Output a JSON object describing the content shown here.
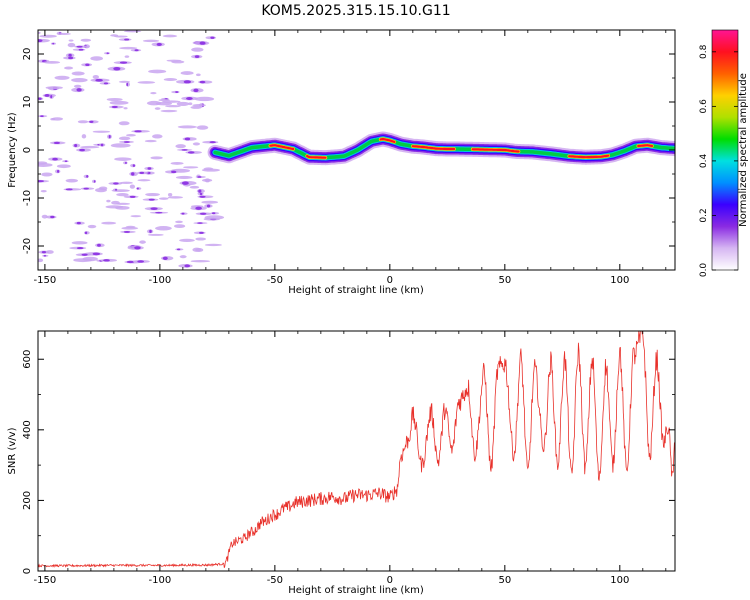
{
  "title": "KOM5.2025.315.15.10.G11",
  "chart_data": [
    {
      "type": "heatmap",
      "xlabel": "Height of straight line (km)",
      "ylabel": "Frequency (Hz)",
      "xlim": [
        -153,
        124
      ],
      "ylim": [
        -25,
        25
      ],
      "xticks": [
        -150,
        -100,
        -50,
        0,
        50,
        100
      ],
      "yticks": [
        -20,
        -10,
        0,
        10,
        20
      ],
      "noise_region_x": [
        -153,
        -76
      ],
      "signal_region_x": [
        -76,
        124
      ],
      "ridge": {
        "x": [
          -76,
          -70,
          -60,
          -50,
          -42,
          -35,
          -28,
          -20,
          -14,
          -8,
          -3,
          0,
          5,
          10,
          15,
          20,
          25,
          30,
          40,
          50,
          55,
          62,
          70,
          78,
          85,
          92,
          97,
          102,
          107,
          112,
          118,
          124
        ],
        "freq": [
          -0.5,
          -1.2,
          0.5,
          1.0,
          0.2,
          -1.5,
          -1.6,
          -1.3,
          0.0,
          1.8,
          2.3,
          2.0,
          1.2,
          0.8,
          0.6,
          0.3,
          0.2,
          0.2,
          0.1,
          0.0,
          -0.3,
          -0.4,
          -0.8,
          -1.3,
          -1.5,
          -1.4,
          -1.0,
          -0.2,
          0.8,
          1.0,
          0.5,
          0.3
        ]
      },
      "colorbar": {
        "label": "Normalized spectral amplitude",
        "range": [
          0.0,
          0.88
        ],
        "ticks": [
          0.0,
          0.2,
          0.4,
          0.6,
          0.8
        ],
        "colors": [
          "#ffffff",
          "#d6b6f2",
          "#8a2be2",
          "#3a00ff",
          "#0090ff",
          "#00e0e0",
          "#00dd00",
          "#b0e000",
          "#ffd000",
          "#ff6000",
          "#ff1020",
          "#ff1493"
        ]
      }
    },
    {
      "type": "line",
      "xlabel": "Height of straight line (km)",
      "ylabel": "SNR (v/v)",
      "xlim": [
        -153,
        124
      ],
      "ylim": [
        0,
        680
      ],
      "xticks": [
        -150,
        -100,
        -50,
        0,
        50,
        100
      ],
      "yticks": [
        0,
        200,
        400,
        600
      ],
      "color": "#e8302a",
      "series": [
        {
          "name": "SNR",
          "x": [
            -153,
            -140,
            -120,
            -100,
            -80,
            -72,
            -68,
            -64,
            -60,
            -55,
            -50,
            -45,
            -40,
            -35,
            -30,
            -25,
            -20,
            -15,
            -10,
            -5,
            0,
            3,
            5,
            8,
            10,
            14,
            18,
            21,
            24,
            27,
            30,
            34,
            37,
            41,
            44,
            47,
            50,
            54,
            57,
            60,
            63,
            67,
            70,
            73,
            76,
            79,
            82,
            85,
            88,
            91,
            94,
            97,
            100,
            103,
            106,
            110,
            113,
            116,
            119,
            121,
            123,
            124
          ],
          "y": [
            15,
            15,
            16,
            16,
            17,
            20,
            80,
            90,
            110,
            140,
            160,
            180,
            195,
            200,
            205,
            210,
            205,
            215,
            215,
            220,
            210,
            230,
            330,
            370,
            440,
            300,
            450,
            310,
            460,
            340,
            480,
            520,
            330,
            560,
            290,
            570,
            590,
            330,
            600,
            280,
            570,
            350,
            590,
            300,
            600,
            270,
            620,
            290,
            600,
            260,
            580,
            300,
            620,
            280,
            610,
            670,
            320,
            600,
            360,
            410,
            260,
            380
          ]
        }
      ]
    }
  ]
}
